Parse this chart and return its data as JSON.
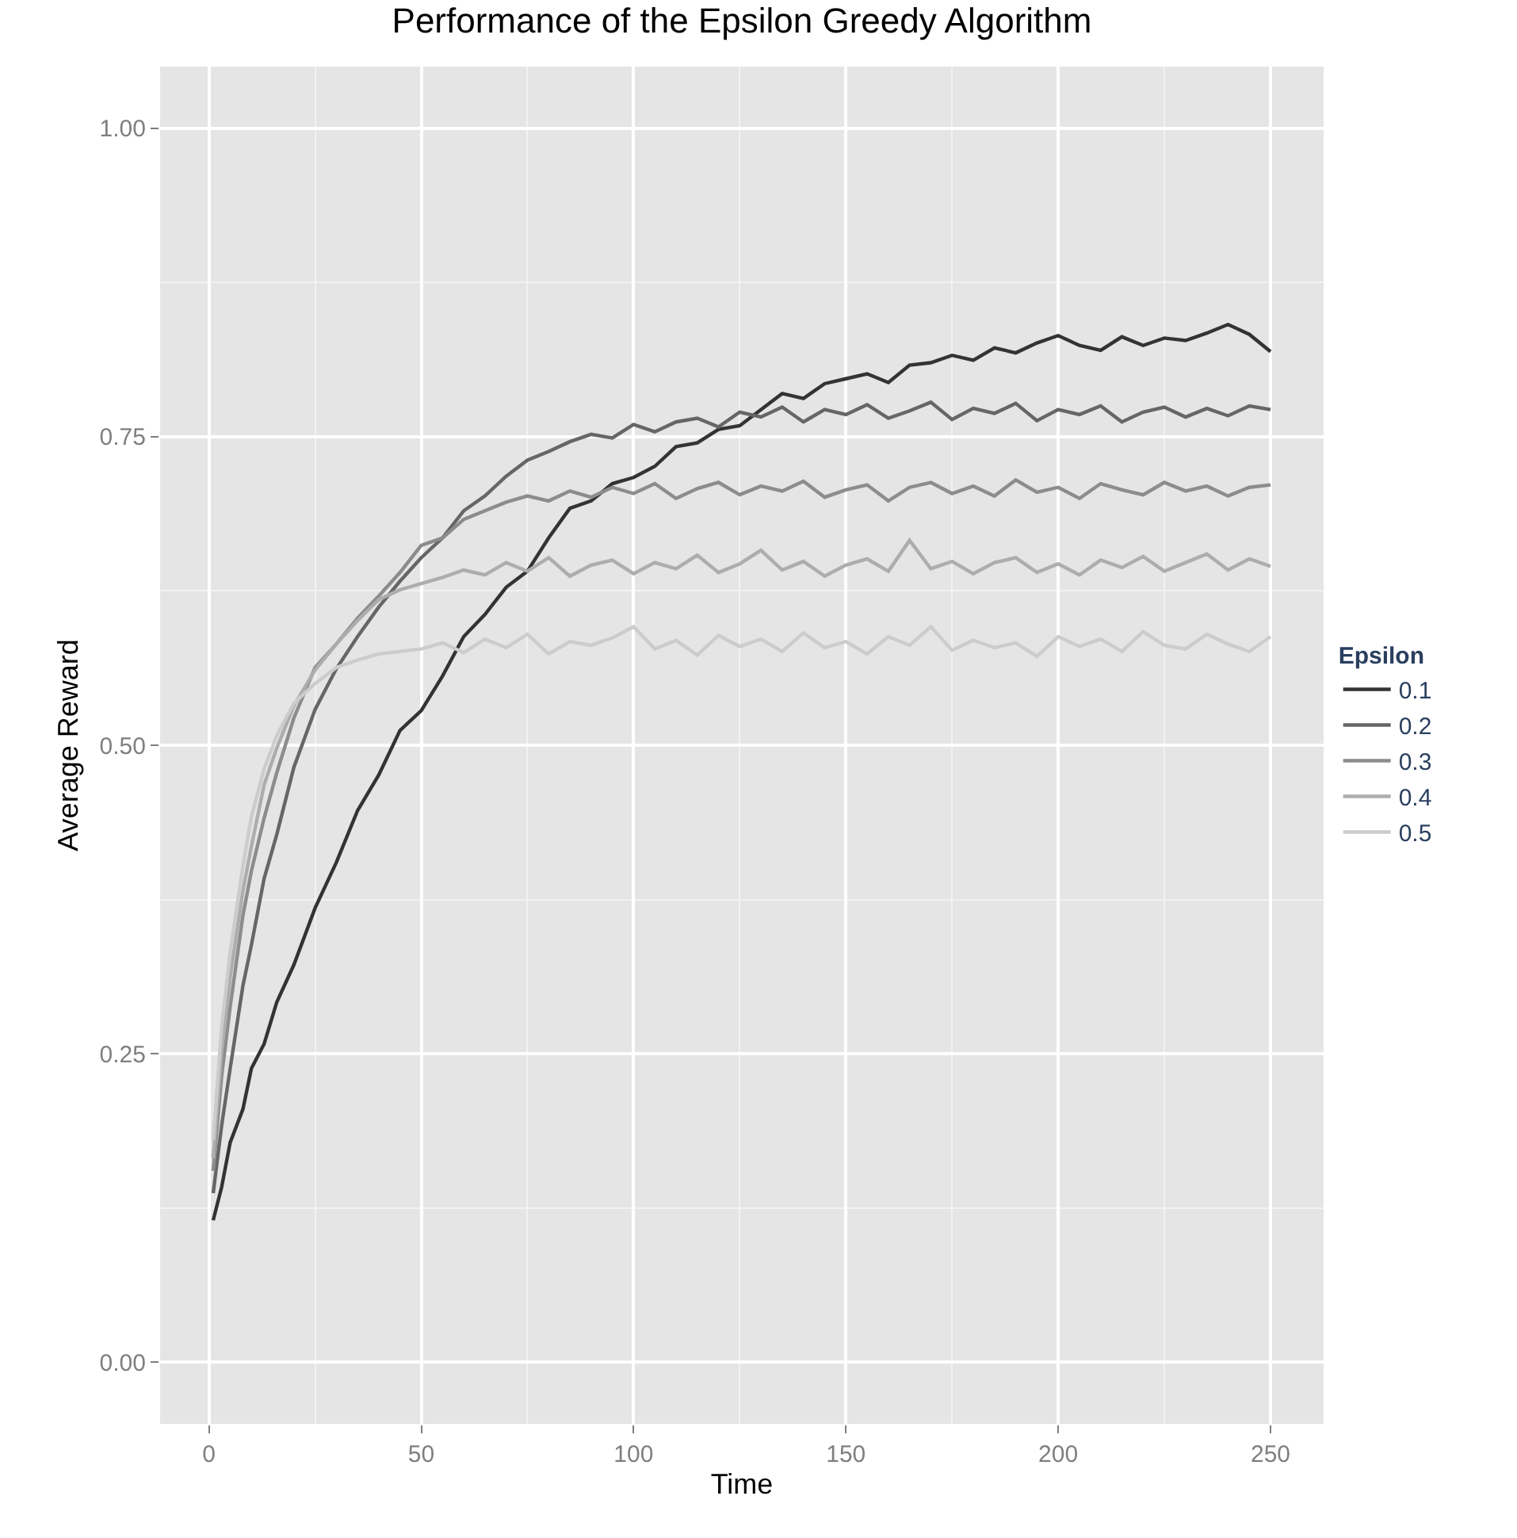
{
  "chart_data": {
    "type": "line",
    "title": "Performance of the Epsilon Greedy Algorithm",
    "xlabel": "Time",
    "ylabel": "Average Reward",
    "legend_title": "Epsilon",
    "x": [
      1,
      3,
      5,
      8,
      10,
      13,
      16,
      20,
      25,
      30,
      35,
      40,
      45,
      50,
      55,
      60,
      65,
      70,
      75,
      80,
      85,
      90,
      95,
      100,
      105,
      110,
      115,
      120,
      125,
      130,
      135,
      140,
      145,
      150,
      155,
      160,
      165,
      170,
      175,
      180,
      185,
      190,
      195,
      200,
      205,
      210,
      215,
      220,
      225,
      230,
      235,
      240,
      245,
      250
    ],
    "series": [
      {
        "name": "0.1",
        "color": "#333333",
        "values": [
          0.115,
          0.142,
          0.178,
          0.205,
          0.238,
          0.258,
          0.292,
          0.322,
          0.368,
          0.405,
          0.447,
          0.476,
          0.512,
          0.528,
          0.556,
          0.588,
          0.606,
          0.628,
          0.641,
          0.668,
          0.692,
          0.698,
          0.712,
          0.717,
          0.726,
          0.742,
          0.745,
          0.756,
          0.759,
          0.772,
          0.785,
          0.781,
          0.793,
          0.797,
          0.801,
          0.794,
          0.808,
          0.81,
          0.816,
          0.812,
          0.822,
          0.818,
          0.826,
          0.832,
          0.824,
          0.82,
          0.831,
          0.824,
          0.83,
          0.828,
          0.834,
          0.841,
          0.833,
          0.819
        ]
      },
      {
        "name": "0.2",
        "color": "#666666",
        "values": [
          0.137,
          0.192,
          0.238,
          0.305,
          0.338,
          0.392,
          0.428,
          0.482,
          0.529,
          0.562,
          0.588,
          0.612,
          0.633,
          0.652,
          0.668,
          0.69,
          0.702,
          0.718,
          0.731,
          0.738,
          0.746,
          0.752,
          0.749,
          0.76,
          0.754,
          0.762,
          0.765,
          0.758,
          0.77,
          0.766,
          0.774,
          0.762,
          0.772,
          0.768,
          0.776,
          0.765,
          0.771,
          0.778,
          0.764,
          0.773,
          0.769,
          0.777,
          0.763,
          0.772,
          0.768,
          0.775,
          0.762,
          0.77,
          0.774,
          0.766,
          0.773,
          0.767,
          0.775,
          0.772
        ]
      },
      {
        "name": "0.3",
        "color": "#8c8c8c",
        "values": [
          0.155,
          0.232,
          0.288,
          0.362,
          0.398,
          0.441,
          0.478,
          0.522,
          0.563,
          0.582,
          0.603,
          0.621,
          0.64,
          0.662,
          0.668,
          0.683,
          0.69,
          0.697,
          0.702,
          0.698,
          0.706,
          0.701,
          0.709,
          0.704,
          0.712,
          0.7,
          0.708,
          0.713,
          0.703,
          0.71,
          0.706,
          0.714,
          0.701,
          0.707,
          0.711,
          0.698,
          0.709,
          0.713,
          0.704,
          0.71,
          0.702,
          0.715,
          0.705,
          0.709,
          0.7,
          0.712,
          0.707,
          0.703,
          0.713,
          0.706,
          0.71,
          0.702,
          0.709,
          0.711
        ]
      },
      {
        "name": "0.4",
        "color": "#adadad",
        "values": [
          0.165,
          0.252,
          0.312,
          0.382,
          0.418,
          0.468,
          0.498,
          0.532,
          0.561,
          0.582,
          0.601,
          0.618,
          0.626,
          0.631,
          0.636,
          0.642,
          0.638,
          0.648,
          0.641,
          0.652,
          0.637,
          0.646,
          0.65,
          0.639,
          0.648,
          0.643,
          0.654,
          0.64,
          0.647,
          0.658,
          0.642,
          0.649,
          0.637,
          0.646,
          0.651,
          0.641,
          0.666,
          0.643,
          0.649,
          0.639,
          0.648,
          0.652,
          0.64,
          0.647,
          0.638,
          0.65,
          0.644,
          0.653,
          0.641,
          0.648,
          0.655,
          0.642,
          0.651,
          0.645
        ]
      },
      {
        "name": "0.5",
        "color": "#cccccc",
        "values": [
          0.18,
          0.272,
          0.332,
          0.402,
          0.442,
          0.481,
          0.508,
          0.534,
          0.55,
          0.563,
          0.569,
          0.574,
          0.576,
          0.578,
          0.583,
          0.575,
          0.586,
          0.579,
          0.59,
          0.574,
          0.584,
          0.581,
          0.587,
          0.596,
          0.578,
          0.585,
          0.573,
          0.589,
          0.58,
          0.586,
          0.576,
          0.591,
          0.579,
          0.584,
          0.574,
          0.588,
          0.581,
          0.596,
          0.577,
          0.585,
          0.579,
          0.583,
          0.572,
          0.588,
          0.58,
          0.586,
          0.576,
          0.592,
          0.581,
          0.578,
          0.59,
          0.582,
          0.576,
          0.588
        ]
      }
    ],
    "xlim": [
      -11.5,
      262.5
    ],
    "xticks": [
      0,
      50,
      100,
      150,
      200,
      250
    ],
    "ylim": [
      -0.05,
      1.05
    ],
    "yticks": [
      {
        "value": 0,
        "label": "0.00"
      },
      {
        "value": 0.25,
        "label": "0.25"
      },
      {
        "value": 0.5,
        "label": "0.50"
      },
      {
        "value": 0.75,
        "label": "0.75"
      },
      {
        "value": 1,
        "label": "1.00"
      }
    ],
    "grid": true,
    "legend": "right",
    "marker": "none",
    "line_style": "solid"
  }
}
